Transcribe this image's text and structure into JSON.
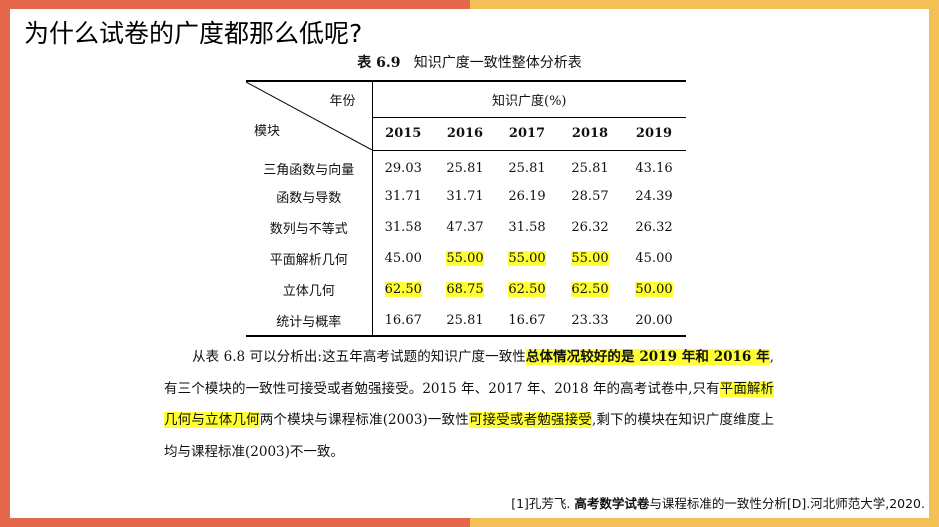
{
  "slide": {
    "title": "为什么试卷的广度都那么低呢?"
  },
  "table": {
    "caption_label": "表 6.9",
    "caption_text": "知识广度一致性整体分析表",
    "corner_top": "年份",
    "corner_bottom": "模块",
    "group_header": "知识广度(%)",
    "years": [
      "2015",
      "2016",
      "2017",
      "2018",
      "2019"
    ],
    "rows": [
      {
        "module": "三角函数与向量",
        "values": [
          "29.03",
          "25.81",
          "25.81",
          "25.81",
          "43.16"
        ],
        "highlight": [
          false,
          false,
          false,
          false,
          false
        ]
      },
      {
        "module": "函数与导数",
        "values": [
          "31.71",
          "31.71",
          "26.19",
          "28.57",
          "24.39"
        ],
        "highlight": [
          false,
          false,
          false,
          false,
          false
        ]
      },
      {
        "module": "数列与不等式",
        "values": [
          "31.58",
          "47.37",
          "31.58",
          "26.32",
          "26.32"
        ],
        "highlight": [
          false,
          false,
          false,
          false,
          false
        ]
      },
      {
        "module": "平面解析几何",
        "values": [
          "45.00",
          "55.00",
          "55.00",
          "55.00",
          "45.00"
        ],
        "highlight": [
          false,
          true,
          true,
          true,
          false
        ]
      },
      {
        "module": "立体几何",
        "values": [
          "62.50",
          "68.75",
          "62.50",
          "62.50",
          "50.00"
        ],
        "highlight": [
          true,
          true,
          true,
          true,
          true
        ]
      },
      {
        "module": "统计与概率",
        "values": [
          "16.67",
          "25.81",
          "16.67",
          "23.33",
          "20.00"
        ],
        "highlight": [
          false,
          false,
          false,
          false,
          false
        ]
      }
    ],
    "highlight_color": "#ffff33"
  },
  "paragraph": {
    "p1": "从表 6.8 可以分析出:这五年高考试题的知识广度一致性",
    "h1": "总体情况较好的是 2019 年",
    "h2": "和 2016 年",
    "p2": ",有三个模块的一致性可接受或者勉强接受。2015 年、2017 年、2018 年的高考试卷中,只有",
    "h3": "平面解析几何与立体几何",
    "p3": "两个模块与课程标准(2003)一致性",
    "h4": "可接受或者勉强接受",
    "p4": ",剩下的模块在知识广度维度上均与课程标准(2003)不一致。"
  },
  "reference": {
    "prefix": "[1]孔芳飞. ",
    "bold": "高考数学试卷",
    "suffix": "与课程标准的一致性分析[D].河北师范大学,2020."
  },
  "colors": {
    "frame_left": "#e4684d",
    "frame_right": "#f2c055"
  }
}
